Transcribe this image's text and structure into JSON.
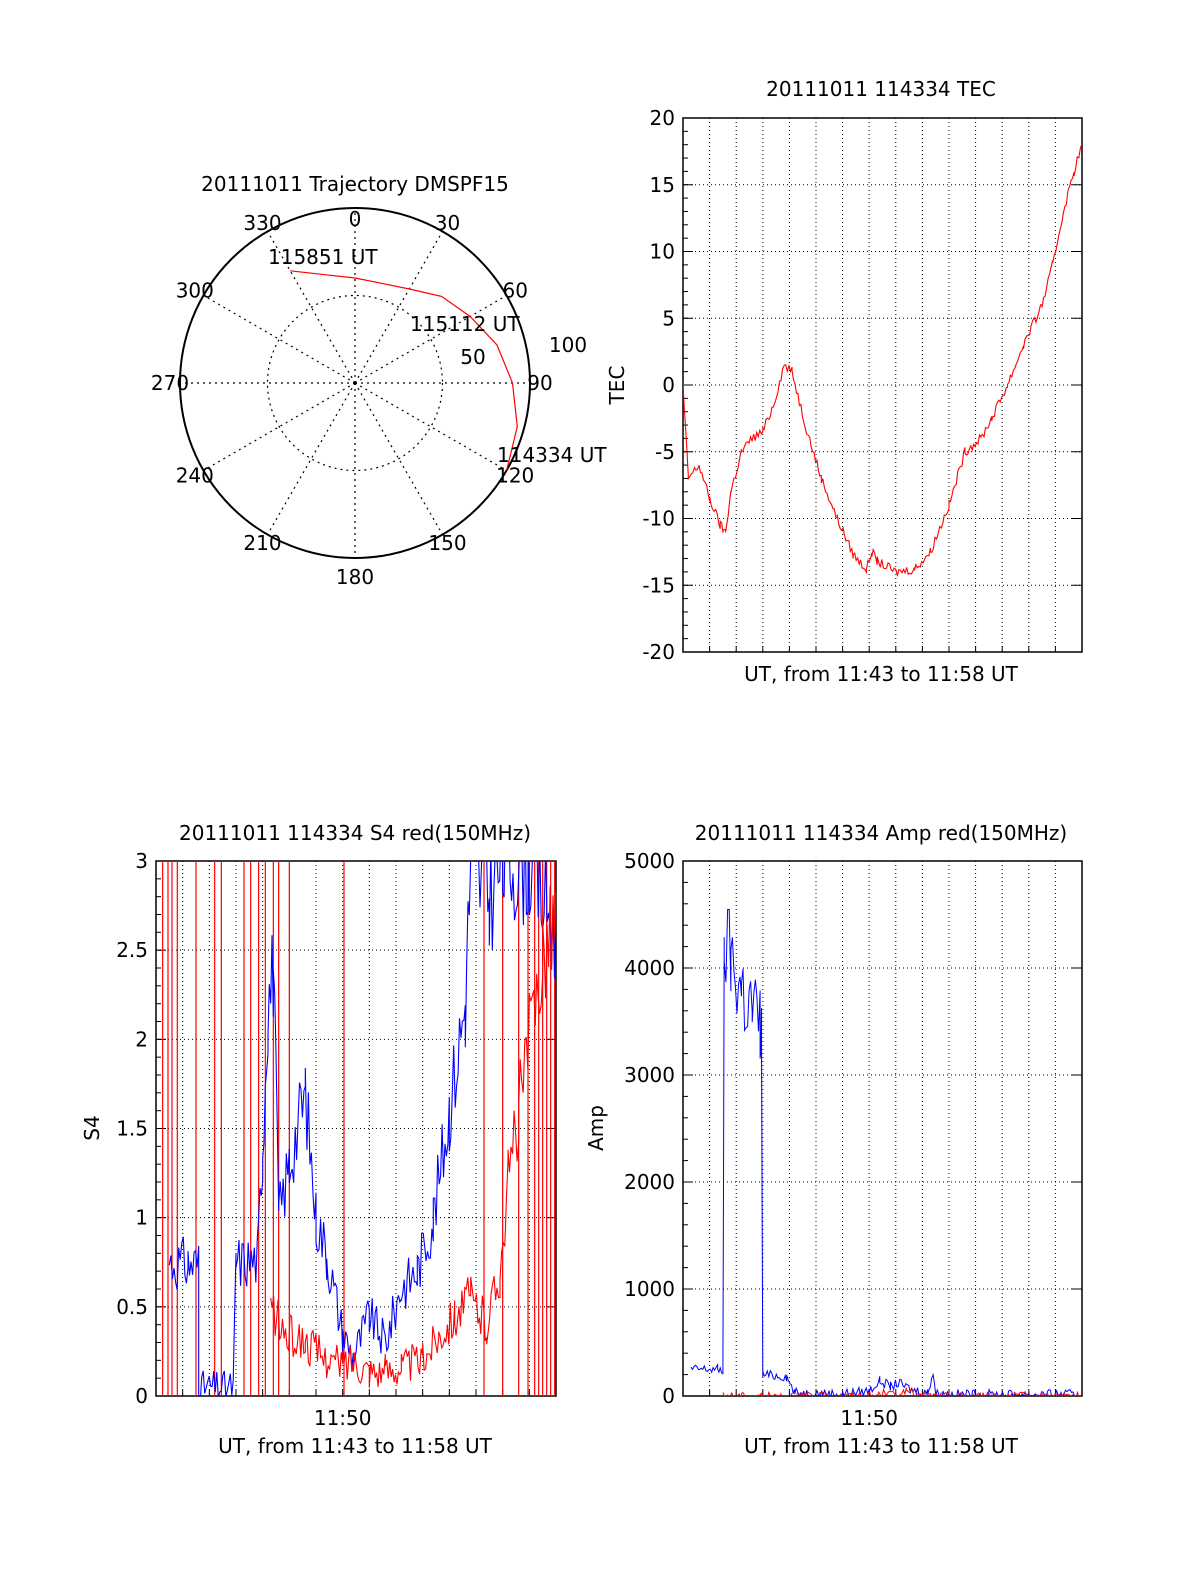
{
  "colors": {
    "red": "#ff0000",
    "blue": "#0000ff",
    "black": "#000000"
  },
  "chart_data": [
    {
      "id": "polar",
      "type": "scatter",
      "title": "20111011 Trajectory DMSPF15",
      "azimuth_labels": [
        "0",
        "30",
        "60",
        "90",
        "120",
        "150",
        "180",
        "210",
        "240",
        "270",
        "300",
        "330"
      ],
      "radial_labels": [
        "50",
        "100"
      ],
      "time_labels": [
        "115851 UT",
        "115112 UT",
        "114334 UT"
      ],
      "trajectory": {
        "color": "red",
        "points": [
          [
            330,
            74
          ],
          [
            345,
            64
          ],
          [
            0,
            60
          ],
          [
            15,
            59
          ],
          [
            30,
            62
          ],
          [
            45,
            70
          ],
          [
            60,
            76
          ],
          [
            75,
            84
          ],
          [
            90,
            90
          ],
          [
            105,
            96
          ],
          [
            120,
            100
          ]
        ]
      }
    },
    {
      "id": "tec",
      "type": "line",
      "title": "20111011 114334 TEC",
      "xlabel": "UT, from 11:43 to 11:58 UT",
      "ylabel": "TEC",
      "ylim": [
        -20,
        20
      ],
      "xlim": [
        0,
        15
      ],
      "ytick_labels": [
        "-20",
        "-15",
        "-10",
        "-5",
        "0",
        "5",
        "10",
        "15",
        "20"
      ],
      "grid": true,
      "series": [
        {
          "color": "red",
          "points": [
            [
              0,
              0
            ],
            [
              0.2,
              -7
            ],
            [
              0.6,
              -6
            ],
            [
              1.0,
              -8.5
            ],
            [
              1.4,
              -10.5
            ],
            [
              1.6,
              -11
            ],
            [
              1.8,
              -8
            ],
            [
              2.2,
              -5
            ],
            [
              2.6,
              -4
            ],
            [
              3.0,
              -3.5
            ],
            [
              3.4,
              -1.5
            ],
            [
              3.8,
              1.5
            ],
            [
              4.1,
              1
            ],
            [
              4.6,
              -3
            ],
            [
              5.2,
              -7
            ],
            [
              5.8,
              -10
            ],
            [
              6.4,
              -12.7
            ],
            [
              6.9,
              -13.8
            ],
            [
              7.1,
              -12.5
            ],
            [
              7.3,
              -13.2
            ],
            [
              8.0,
              -14
            ],
            [
              8.7,
              -13.8
            ],
            [
              9.3,
              -12.5
            ],
            [
              10.0,
              -9
            ],
            [
              10.6,
              -5
            ],
            [
              11.2,
              -4
            ],
            [
              11.6,
              -2.5
            ],
            [
              12.2,
              0
            ],
            [
              12.8,
              3
            ],
            [
              13.5,
              6
            ],
            [
              13.9,
              9
            ],
            [
              14.3,
              13
            ],
            [
              14.7,
              16
            ],
            [
              15.0,
              18
            ]
          ]
        }
      ]
    },
    {
      "id": "s4",
      "type": "line",
      "title": "20111011 114334 S4 red(150MHz)",
      "xlabel": "UT, from 11:43 to 11:58 UT",
      "ylabel": "S4",
      "ylim": [
        0,
        3
      ],
      "xlim": [
        0,
        15
      ],
      "ytick_labels": [
        "0",
        "0.5",
        "1",
        "1.5",
        "2",
        "2.5",
        "3"
      ],
      "xtick_labels": [
        "11:50"
      ],
      "xtick_values": [
        7
      ],
      "grid": true,
      "series": [
        {
          "color": "blue",
          "points": [
            [
              0.5,
              0.75
            ],
            [
              1.2,
              0.74
            ],
            [
              1.6,
              0.74
            ],
            [
              1.6,
              0.05
            ],
            [
              2.9,
              0.05
            ],
            [
              3.0,
              0.75
            ],
            [
              3.8,
              0.76
            ],
            [
              4.0,
              1.4
            ],
            [
              4.2,
              2.2
            ],
            [
              4.4,
              2.4
            ],
            [
              4.6,
              1.0
            ],
            [
              5.0,
              1.3
            ],
            [
              5.6,
              1.7
            ],
            [
              6.0,
              1.0
            ],
            [
              6.4,
              0.8
            ],
            [
              7.0,
              0.35
            ],
            [
              7.4,
              0.22
            ],
            [
              8.0,
              0.45
            ],
            [
              8.6,
              0.3
            ],
            [
              9.2,
              0.6
            ],
            [
              9.8,
              0.7
            ],
            [
              10.4,
              1.0
            ],
            [
              11.0,
              1.6
            ],
            [
              11.6,
              2.2
            ],
            [
              11.8,
              3.0
            ],
            [
              12.5,
              2.8
            ],
            [
              13.0,
              3.0
            ],
            [
              14.0,
              3.0
            ],
            [
              15.0,
              2.6
            ]
          ]
        },
        {
          "color": "red",
          "points": [
            [
              4.3,
              0.5
            ],
            [
              4.8,
              0.35
            ],
            [
              5.6,
              0.3
            ],
            [
              6.4,
              0.2
            ],
            [
              7.0,
              0.18
            ],
            [
              7.4,
              0.2
            ],
            [
              8.0,
              0.15
            ],
            [
              8.6,
              0.14
            ],
            [
              9.2,
              0.17
            ],
            [
              10.0,
              0.2
            ],
            [
              10.6,
              0.35
            ],
            [
              11.2,
              0.45
            ],
            [
              11.8,
              0.55
            ],
            [
              12.4,
              0.4
            ],
            [
              12.9,
              0.7
            ],
            [
              13.2,
              1.2
            ],
            [
              13.6,
              1.6
            ],
            [
              14.0,
              2.0
            ],
            [
              14.5,
              2.5
            ],
            [
              15.0,
              2.7
            ]
          ]
        }
      ],
      "red_spike_x": [
        0.25,
        0.45,
        0.6,
        0.8,
        1.5,
        2.2,
        2.45,
        3.3,
        3.55,
        3.85,
        4.1,
        4.4,
        4.6,
        5.0,
        7.05,
        12.3,
        13.0,
        13.6,
        13.95,
        14.2,
        14.35,
        14.5,
        14.65,
        14.8,
        14.95
      ]
    },
    {
      "id": "amp",
      "type": "line",
      "title": "20111011 114334 Amp red(150MHz)",
      "xlabel": "UT, from 11:43 to 11:58 UT",
      "ylabel": "Amp",
      "ylim": [
        0,
        5000
      ],
      "xlim": [
        0,
        15
      ],
      "ytick_labels": [
        "0",
        "1000",
        "2000",
        "3000",
        "4000",
        "5000"
      ],
      "xtick_labels": [
        "11:50"
      ],
      "xtick_values": [
        7
      ],
      "grid": true,
      "series": [
        {
          "color": "blue",
          "points": [
            [
              0.3,
              250
            ],
            [
              1.3,
              250
            ],
            [
              1.5,
              240
            ],
            [
              1.55,
              4250
            ],
            [
              1.8,
              4100
            ],
            [
              2.2,
              3800
            ],
            [
              2.6,
              3600
            ],
            [
              2.9,
              3450
            ],
            [
              2.95,
              3300
            ],
            [
              3.0,
              200
            ],
            [
              3.9,
              180
            ],
            [
              4.2,
              30
            ],
            [
              6.0,
              20
            ],
            [
              7.0,
              50
            ],
            [
              7.4,
              140
            ],
            [
              7.8,
              90
            ],
            [
              8.1,
              120
            ],
            [
              8.6,
              60
            ],
            [
              9.2,
              30
            ],
            [
              9.4,
              220
            ],
            [
              9.5,
              20
            ],
            [
              11.0,
              15
            ],
            [
              15.0,
              15
            ]
          ]
        },
        {
          "color": "red",
          "points": [
            [
              1.5,
              5
            ],
            [
              3.0,
              5
            ],
            [
              7.3,
              5
            ],
            [
              7.6,
              40
            ],
            [
              8.0,
              10
            ],
            [
              8.4,
              50
            ],
            [
              8.8,
              5
            ],
            [
              15.0,
              5
            ]
          ]
        }
      ]
    }
  ]
}
